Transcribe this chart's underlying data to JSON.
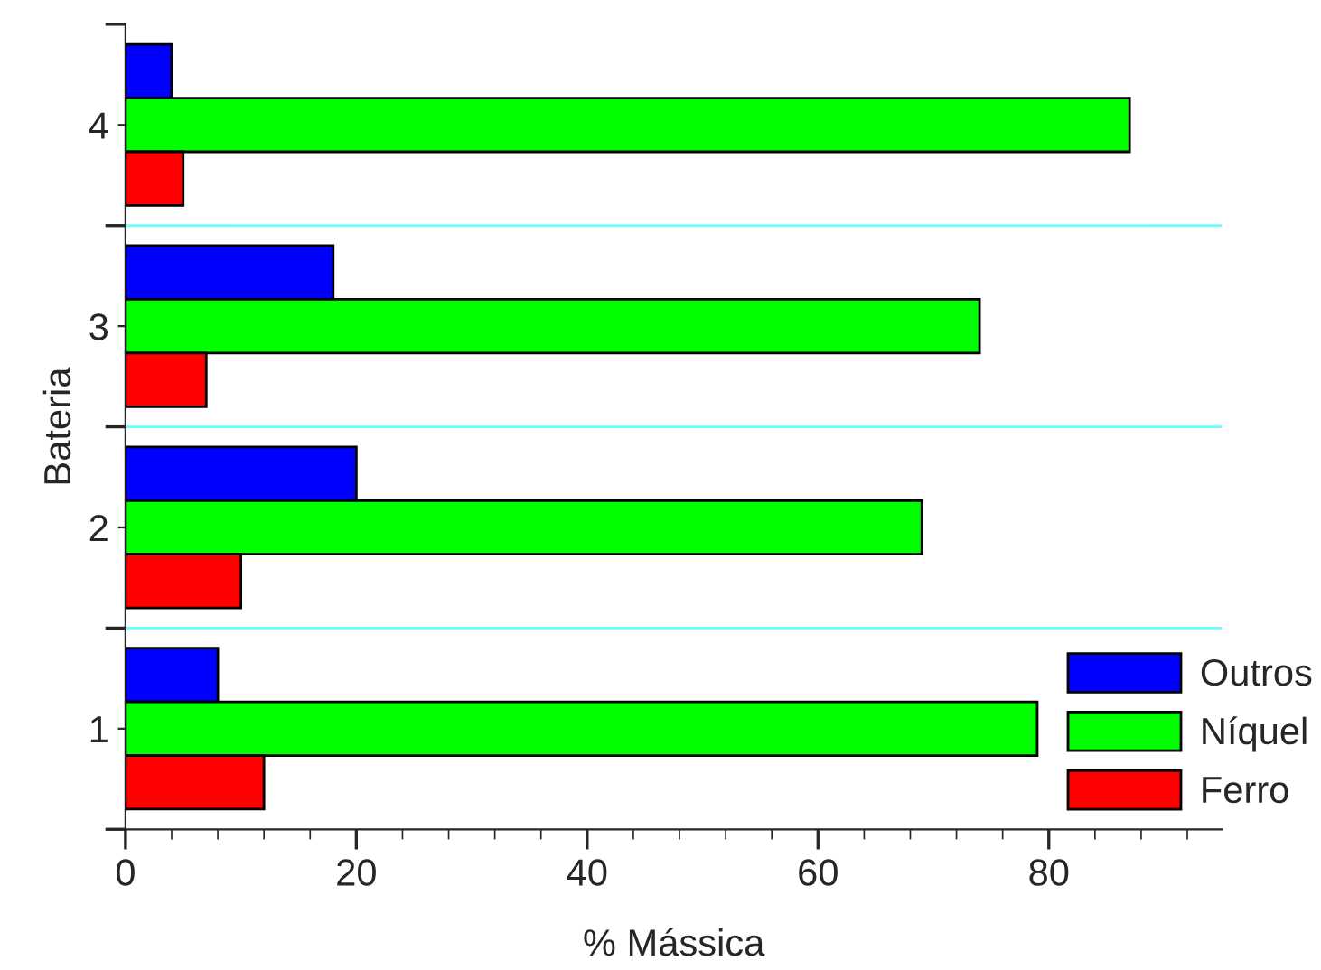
{
  "chart_data": {
    "type": "bar",
    "orientation": "horizontal",
    "xlabel": "% Mássica",
    "ylabel": "Bateria",
    "categories": [
      "4",
      "3",
      "2",
      "1"
    ],
    "series": [
      {
        "name": "Outros",
        "color": "#0000ff",
        "values": [
          4,
          18,
          20,
          8
        ]
      },
      {
        "name": "Níquel",
        "color": "#00ff00",
        "values": [
          87,
          74,
          69,
          79
        ]
      },
      {
        "name": "Ferro",
        "color": "#ff0000",
        "values": [
          5,
          7,
          10,
          12
        ]
      }
    ],
    "xlim": [
      0,
      95
    ],
    "xticks": [
      0,
      20,
      40,
      60,
      80
    ],
    "grid": "y",
    "legend": "bottom right"
  }
}
